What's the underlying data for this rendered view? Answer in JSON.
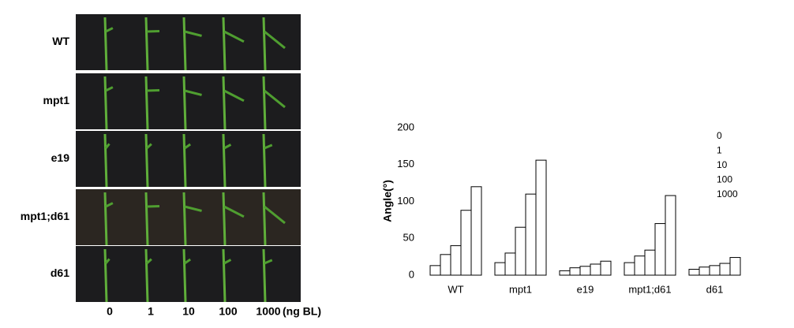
{
  "photo_panel": {
    "rows": [
      "WT",
      "mpt1",
      "e19",
      "mpt1;d61",
      "d61"
    ],
    "columns": [
      "0",
      "1",
      "10",
      "100",
      "1000"
    ],
    "unit": "(ng BL)"
  },
  "chart_data": {
    "type": "bar",
    "y_label": "Angle(°)",
    "categories": [
      "WT",
      "mpt1",
      "e19",
      "mpt1;d61",
      "d61"
    ],
    "series": [
      {
        "name": "0",
        "color": "#ffffff",
        "values": [
          13,
          17,
          6,
          17,
          8
        ]
      },
      {
        "name": "1",
        "color": "#ffffff",
        "values": [
          28,
          30,
          10,
          26,
          11
        ]
      },
      {
        "name": "10",
        "color": "#ffffff",
        "values": [
          40,
          65,
          12,
          34,
          13
        ]
      },
      {
        "name": "100",
        "color": "#ffffff",
        "values": [
          88,
          110,
          15,
          70,
          16
        ]
      },
      {
        "name": "1000",
        "color": "#ffffff",
        "values": [
          120,
          156,
          19,
          108,
          24
        ]
      }
    ],
    "ylim": [
      0,
      200
    ],
    "yticks": [
      0,
      50,
      100,
      150,
      200
    ],
    "grid": false,
    "legend": "upper right"
  }
}
